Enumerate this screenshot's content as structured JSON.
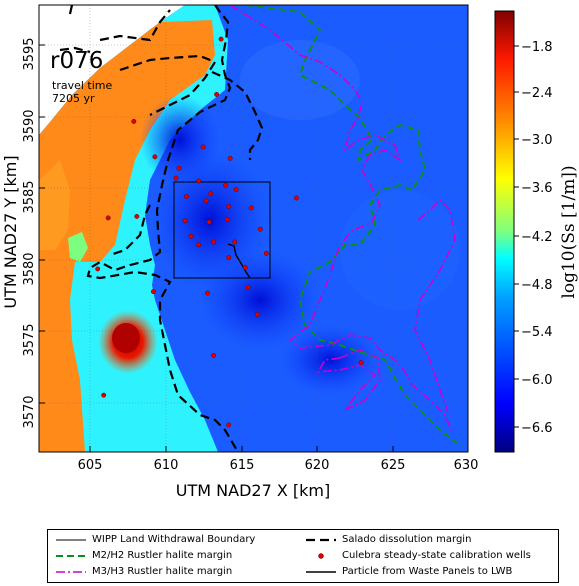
{
  "panel": {
    "run_label": "r076",
    "travel_time_label": "travel time",
    "travel_time_value": "7205 yr"
  },
  "axes": {
    "xlabel": "UTM NAD27 X [km]",
    "ylabel": "UTM NAD27 Y [km]",
    "xlim": [
      601.5,
      630
    ],
    "ylim": [
      3566,
      3597.5
    ],
    "xticks": [
      "605",
      "610",
      "615",
      "620",
      "625",
      "630"
    ],
    "yticks": [
      "3570",
      "3575",
      "3580",
      "3585",
      "3590",
      "3595"
    ]
  },
  "colorbar": {
    "label": "log10(Ss [1/m])",
    "min": -7.0,
    "max": -1.2,
    "ticks": [
      "−1.8",
      "−2.4",
      "−3.0",
      "−3.6",
      "−4.2",
      "−4.8",
      "−5.4",
      "−6.0",
      "−6.6"
    ],
    "colors": [
      "#00007f",
      "#0000ff",
      "#007fff",
      "#00ffff",
      "#7fff7f",
      "#ffff00",
      "#ff7f00",
      "#ff0000",
      "#7f0000"
    ]
  },
  "legend": {
    "items": [
      {
        "label": "WIPP Land Withdrawal Boundary",
        "color": "#000000",
        "style": "thin-solid"
      },
      {
        "label": "Salado dissolution margin",
        "color": "#000000",
        "style": "thick-dashed"
      },
      {
        "label": "M2/H2 Rustler halite margin",
        "color": "#008000",
        "style": "dashed"
      },
      {
        "label": "Culebra steady-state calibration wells",
        "color": "#e00000",
        "style": "marker"
      },
      {
        "label": "M3/H3 Rustler halite margin",
        "color": "#cc00cc",
        "style": "dash-dot"
      },
      {
        "label": "Particle from Waste Panels to LWB",
        "color": "#000000",
        "style": "solid"
      }
    ]
  },
  "chart_data": {
    "type": "scatter",
    "title": "",
    "xlabel": "UTM NAD27 X [km]",
    "ylabel": "UTM NAD27 Y [km]",
    "xlim": [
      601.5,
      630
    ],
    "ylim": [
      3566,
      3597.5
    ],
    "series": [
      {
        "name": "Culebra steady-state calibration wells",
        "x": [
          613.6,
          613.3,
          607.8,
          609.2,
          612.4,
          614.2,
          610.6,
          612.1,
          613.9,
          614.6,
          612.9,
          611.3,
          612.6,
          614.1,
          615.6,
          611.2,
          612.8,
          614.0,
          618.6,
          616.2,
          611.6,
          613.1,
          612.1,
          614.5,
          616.6,
          614.1,
          615.2,
          615.4,
          612.7,
          609.1,
          608.0,
          605.4,
          606.1,
          610.8,
          616.0,
          622.9,
          613.1,
          605.8,
          614.1
        ],
        "y": [
          3595.1,
          3591.2,
          3589.3,
          3586.8,
          3587.5,
          3586.7,
          3585.3,
          3585.1,
          3584.8,
          3584.5,
          3584.2,
          3584.0,
          3583.7,
          3583.3,
          3583.2,
          3582.3,
          3582.2,
          3582.4,
          3583.9,
          3581.7,
          3581.2,
          3580.8,
          3580.6,
          3580.8,
          3580.0,
          3579.7,
          3579.0,
          3577.6,
          3577.2,
          3577.3,
          3582.6,
          3578.9,
          3582.5,
          3586.0,
          3575.7,
          3572.3,
          3572.8,
          3570.0,
          3567.9
        ]
      }
    ],
    "colorbar_range": [
      -7.0,
      -1.2
    ],
    "grid": true
  }
}
